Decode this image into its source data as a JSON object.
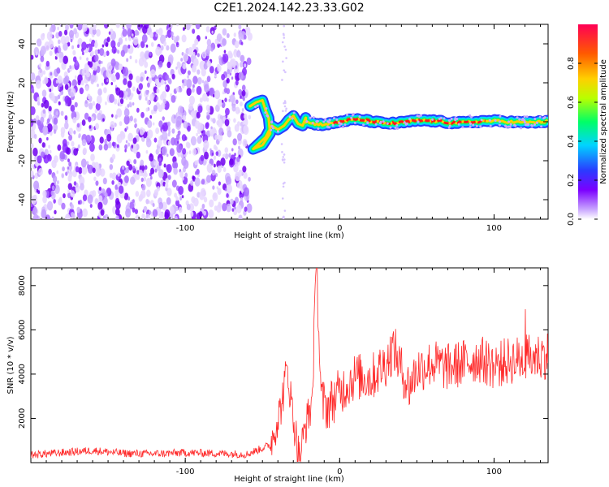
{
  "title": "C2E1.2024.142.23.33.G02",
  "chart_data": [
    {
      "type": "heatmap",
      "title": "",
      "xlabel": "Height of straight line (km)",
      "ylabel": "Frequency (Hz)",
      "xlim": [
        -200,
        135
      ],
      "ylim": [
        -50,
        50
      ],
      "xticks": [
        -100,
        0,
        100
      ],
      "yticks": [
        -40,
        -20,
        0,
        20,
        40
      ],
      "colorbar": {
        "label": "Normalized spectral amplitude",
        "range": [
          0,
          1
        ],
        "ticks": [
          "0.0",
          "0.2",
          "0.4",
          "0.6",
          "0.8"
        ],
        "colormap": [
          "#ffffff",
          "#c9a6ff",
          "#7b00ff",
          "#2a3bff",
          "#00d4ff",
          "#00ff66",
          "#b8ff00",
          "#ffd000",
          "#ff5a00",
          "#ff0055"
        ]
      },
      "regions": [
        {
          "name": "diffuse noise",
          "x": [
            -200,
            -60
          ],
          "y": [
            -50,
            50
          ],
          "amplitude": 0.1
        },
        {
          "name": "trace",
          "x": [
            -60,
            135
          ],
          "y_center": 0,
          "amplitude": 0.85
        }
      ]
    },
    {
      "type": "line",
      "title": "",
      "xlabel": "Height of straight line (km)",
      "ylabel": "SNR (10 * v/v)",
      "xlim": [
        -200,
        135
      ],
      "ylim": [
        0,
        8800
      ],
      "xticks": [
        -100,
        0,
        100
      ],
      "yticks": [
        2000,
        4000,
        6000,
        8000
      ],
      "color": "#ff2a2a",
      "series": [
        {
          "x": [
            -200,
            -180,
            -160,
            -140,
            -120,
            -100,
            -80,
            -60,
            -45,
            -38,
            -34,
            -30,
            -26,
            -22,
            -18,
            -15,
            -12,
            -8,
            0,
            10,
            20,
            30,
            35,
            40,
            45,
            50,
            60,
            70,
            80,
            90,
            100,
            110,
            120,
            130,
            135
          ],
          "y": [
            350,
            450,
            550,
            420,
            400,
            450,
            420,
            380,
            800,
            2500,
            4300,
            2000,
            200,
            1700,
            2700,
            8800,
            2800,
            2500,
            3200,
            3900,
            3800,
            4500,
            5200,
            4200,
            3400,
            4200,
            4500,
            4300,
            4500,
            4700,
            4400,
            4600,
            4700,
            4800,
            4900
          ]
        }
      ]
    }
  ]
}
